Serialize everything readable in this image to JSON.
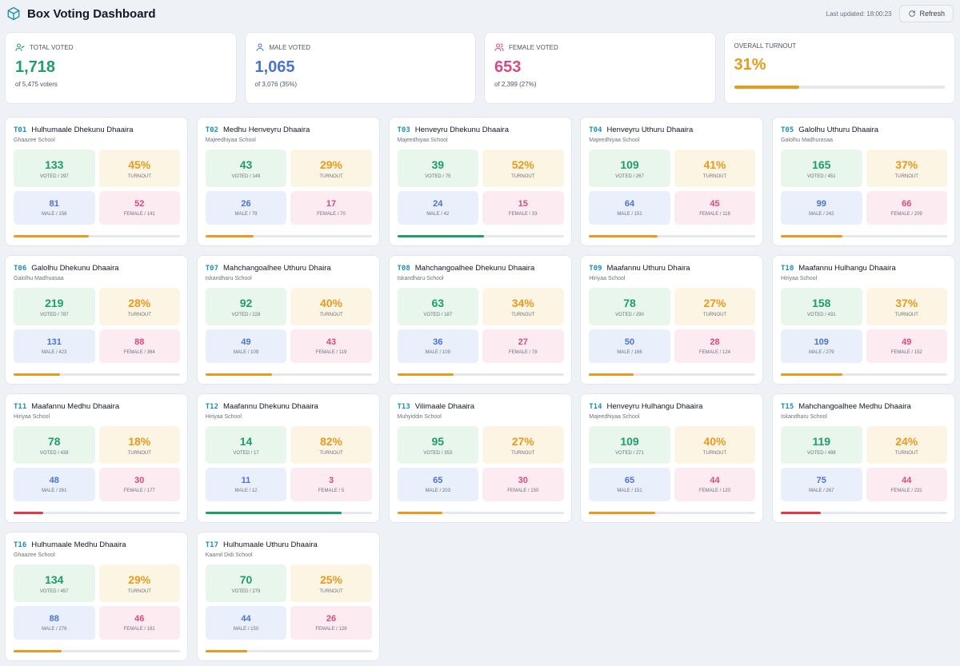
{
  "app": {
    "title": "Box Voting Dashboard",
    "last_updated": "Last updated: 18:00:23",
    "refresh_label": "Refresh"
  },
  "summary": [
    {
      "label": "TOTAL VOTED",
      "value": "1,718",
      "sub": "of 5,475 voters",
      "tone": "teal",
      "icon": "user-check-icon"
    },
    {
      "label": "MALE VOTED",
      "value": "1,065",
      "sub": "of 3,076 (35%)",
      "tone": "blue",
      "icon": "user-icon"
    },
    {
      "label": "FEMALE VOTED",
      "value": "653",
      "sub": "of 2,399 (27%)",
      "tone": "pink",
      "icon": "users-icon"
    },
    {
      "label": "OVERALL TURNOUT",
      "value": "31%",
      "progress": 0.31,
      "tone": "amber"
    }
  ],
  "colors": {
    "teal": "#1f9d6b",
    "blue": "#4a73d1",
    "pink": "#d84a83",
    "amber": "#e99a1d",
    "red": "#dc3b4b",
    "green": "#1f9d6b"
  },
  "boxes": [
    {
      "code": "T01",
      "name": "Hulhumaale Dhekunu Dhaaira",
      "school": "Ghaazee School",
      "voted": "133",
      "voted_label": "VOTED / 297",
      "turnout": "45%",
      "male": "81",
      "male_label": "MALE / 156",
      "female": "52",
      "female_label": "FEMALE / 141",
      "progress": 0.45,
      "bar_color": "amber"
    },
    {
      "code": "T02",
      "name": "Medhu Henveyru Dhaaira",
      "school": "Majeedhiyaa School",
      "voted": "43",
      "voted_label": "VOTED / 149",
      "turnout": "29%",
      "male": "26",
      "male_label": "MALE / 79",
      "female": "17",
      "female_label": "FEMALE / 70",
      "progress": 0.29,
      "bar_color": "amber"
    },
    {
      "code": "T03",
      "name": "Henveyru Dhekunu Dhaaira",
      "school": "Majeedhiyaa School",
      "voted": "39",
      "voted_label": "VOTED / 75",
      "turnout": "52%",
      "male": "24",
      "male_label": "MALE / 42",
      "female": "15",
      "female_label": "FEMALE / 33",
      "progress": 0.52,
      "bar_color": "green"
    },
    {
      "code": "T04",
      "name": "Henveyru Uthuru Dhaaira",
      "school": "Majeedhiyaa School",
      "voted": "109",
      "voted_label": "VOTED / 267",
      "turnout": "41%",
      "male": "64",
      "male_label": "MALE / 151",
      "female": "45",
      "female_label": "FEMALE / 116",
      "progress": 0.41,
      "bar_color": "amber"
    },
    {
      "code": "T05",
      "name": "Galolhu Uthuru Dhaaira",
      "school": "Galolhu Madhurasaa",
      "voted": "165",
      "voted_label": "VOTED / 451",
      "turnout": "37%",
      "male": "99",
      "male_label": "MALE / 242",
      "female": "66",
      "female_label": "FEMALE / 209",
      "progress": 0.37,
      "bar_color": "amber"
    },
    {
      "code": "T06",
      "name": "Galolhu Dhekunu Dhaaira",
      "school": "Galolhu Madhuasaa",
      "voted": "219",
      "voted_label": "VOTED / 787",
      "turnout": "28%",
      "male": "131",
      "male_label": "MALE / 423",
      "female": "88",
      "female_label": "FEMALE / 364",
      "progress": 0.28,
      "bar_color": "amber"
    },
    {
      "code": "T07",
      "name": "Mahchangoalhee Uthuru Dhaira",
      "school": "Iskandharu School",
      "voted": "92",
      "voted_label": "VOTED / 228",
      "turnout": "40%",
      "male": "49",
      "male_label": "MALE / 109",
      "female": "43",
      "female_label": "FEMALE / 119",
      "progress": 0.4,
      "bar_color": "amber"
    },
    {
      "code": "T08",
      "name": "Mahchangoalhee Dhekunu Dhaaira",
      "school": "Iskandharu School",
      "voted": "63",
      "voted_label": "VOTED / 187",
      "turnout": "34%",
      "male": "36",
      "male_label": "MALE / 109",
      "female": "27",
      "female_label": "FEMALE / 78",
      "progress": 0.34,
      "bar_color": "amber"
    },
    {
      "code": "T09",
      "name": "Maafannu Uthuru Dhaira",
      "school": "Hiriyaa School",
      "voted": "78",
      "voted_label": "VOTED / 290",
      "turnout": "27%",
      "male": "50",
      "male_label": "MALE / 166",
      "female": "28",
      "female_label": "FEMALE / 124",
      "progress": 0.27,
      "bar_color": "amber"
    },
    {
      "code": "T10",
      "name": "Maafannu Hulhangu Dhaaira",
      "school": "Hiriyaa School",
      "voted": "158",
      "voted_label": "VOTED / 431",
      "turnout": "37%",
      "male": "109",
      "male_label": "MALE / 279",
      "female": "49",
      "female_label": "FEMALE / 152",
      "progress": 0.37,
      "bar_color": "amber"
    },
    {
      "code": "T11",
      "name": "Maafannu Medhu Dhaaira",
      "school": "Hiriyaa School",
      "voted": "78",
      "voted_label": "VOTED / 438",
      "turnout": "18%",
      "male": "48",
      "male_label": "MALE / 261",
      "female": "30",
      "female_label": "FEMALE / 177",
      "progress": 0.18,
      "bar_color": "red"
    },
    {
      "code": "T12",
      "name": "Maafannu Dhekunu Dhaaira",
      "school": "Hiriyaa School",
      "voted": "14",
      "voted_label": "VOTED / 17",
      "turnout": "82%",
      "male": "11",
      "male_label": "MALE / 12",
      "female": "3",
      "female_label": "FEMALE / 5",
      "progress": 0.82,
      "bar_color": "green"
    },
    {
      "code": "T13",
      "name": "Vilimaale Dhaaira",
      "school": "Muhyiddin School",
      "voted": "95",
      "voted_label": "VOTED / 353",
      "turnout": "27%",
      "male": "65",
      "male_label": "MALE / 203",
      "female": "30",
      "female_label": "FEMALE / 150",
      "progress": 0.27,
      "bar_color": "amber"
    },
    {
      "code": "T14",
      "name": "Henveyru Hulhangu Dhaaira",
      "school": "Majeedhiyaa School",
      "voted": "109",
      "voted_label": "VOTED / 271",
      "turnout": "40%",
      "male": "65",
      "male_label": "MALE / 151",
      "female": "44",
      "female_label": "FEMALE / 120",
      "progress": 0.4,
      "bar_color": "amber"
    },
    {
      "code": "T15",
      "name": "Mahchangoalhee Medhu Dhaaira",
      "school": "Iskandharu School",
      "voted": "119",
      "voted_label": "VOTED / 498",
      "turnout": "24%",
      "male": "75",
      "male_label": "MALE / 267",
      "female": "44",
      "female_label": "FEMALE / 231",
      "progress": 0.24,
      "bar_color": "red"
    },
    {
      "code": "T16",
      "name": "Hulhumaale Medhu Dhaaira",
      "school": "Ghaazee School",
      "voted": "134",
      "voted_label": "VOTED / 457",
      "turnout": "29%",
      "male": "88",
      "male_label": "MALE / 276",
      "female": "46",
      "female_label": "FEMALE / 181",
      "progress": 0.29,
      "bar_color": "amber"
    },
    {
      "code": "T17",
      "name": "Hulhumaale Uthuru Dhaaira",
      "school": "Kaamil Didi School",
      "voted": "70",
      "voted_label": "VOTED / 279",
      "turnout": "25%",
      "male": "44",
      "male_label": "MALE / 150",
      "female": "26",
      "female_label": "FEMALE / 129",
      "progress": 0.25,
      "bar_color": "amber"
    }
  ]
}
